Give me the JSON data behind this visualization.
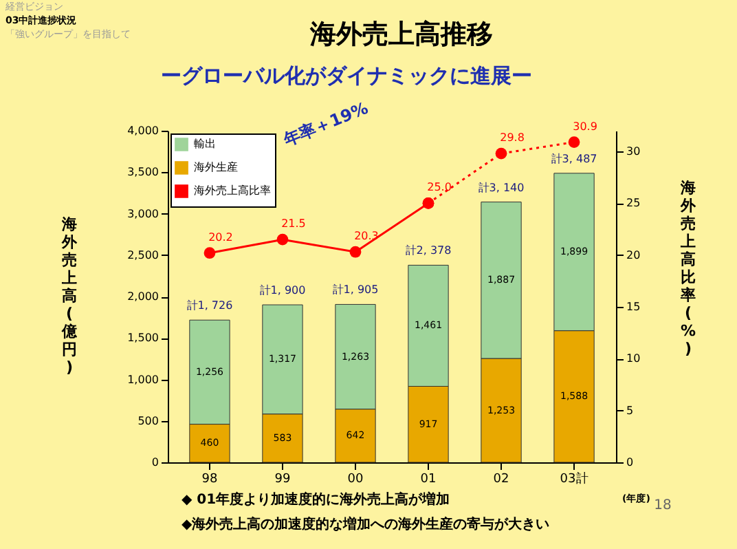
{
  "chart_data": {
    "type": "bar",
    "title": "海外売上高推移",
    "subtitle": "ーグローバル化がダイナミックに進展ー",
    "categories": [
      "98",
      "99",
      "00",
      "01",
      "02",
      "03計"
    ],
    "stacked": true,
    "totals": [
      "計1, 726",
      "計1, 900",
      "計1, 905",
      "計2, 378",
      "計3, 140",
      "計3, 487"
    ],
    "series": [
      {
        "name": "海外生産",
        "color": "#e8a800",
        "values": [
          460,
          583,
          642,
          917,
          1253,
          1588
        ],
        "value_labels": [
          "460",
          "583",
          "642",
          "917",
          "1,253",
          "1,588"
        ]
      },
      {
        "name": "輸出",
        "color": "#9fd49a",
        "values": [
          1256,
          1317,
          1263,
          1461,
          1887,
          1899
        ],
        "value_labels": [
          "1,256",
          "1,317",
          "1,263",
          "1,461",
          "1,887",
          "1,899"
        ]
      },
      {
        "name": "海外売上高比率",
        "type": "line",
        "axis": "y2",
        "color": "#ff0000",
        "line_style": "solid",
        "marker": "circle",
        "values": [
          20.2,
          21.5,
          20.3,
          25.0,
          null,
          null
        ],
        "value_labels": [
          "20.2",
          "21.5",
          "20.3",
          "25.0",
          null,
          null
        ]
      },
      {
        "type": "line",
        "axis": "y2",
        "color": "#ff0000",
        "line_style": "dotted",
        "marker": "circle",
        "values": [
          null,
          null,
          null,
          25.0,
          29.8,
          30.9
        ],
        "value_labels": [
          null,
          null,
          null,
          null,
          "29.8",
          "30.9"
        ]
      }
    ],
    "ylabel": "海外売上高(億円)",
    "y2label": "海外売上高比率(%)",
    "xlabel": "(年度)",
    "ylim": [
      0,
      4000
    ],
    "yticks": [
      0,
      {
        "value": 500,
        "label": "500"
      },
      {
        "value": 1000,
        "label": "1,000"
      },
      {
        "value": 1500,
        "label": "1,500"
      },
      {
        "value": 2000,
        "label": "2,000"
      },
      {
        "value": 2500,
        "label": "2,500"
      },
      {
        "value": 3000,
        "label": "3,000"
      },
      {
        "value": 3500,
        "label": "3,500"
      },
      {
        "value": 4000,
        "label": "4,000"
      }
    ],
    "y2lim": [
      0,
      32
    ],
    "y2ticks": [
      0,
      5,
      10,
      15,
      20,
      25,
      30
    ],
    "grid": false,
    "legend": "top left",
    "annotations": [
      "経営ビジョン",
      "03中計進捗状況",
      "「強いグループ」を目指して",
      "年率＋19%",
      "◆ 01年度より加速度的に海外売上高が増加",
      "◆海外売上高の加速度的な増加への海外生産の寄与が大きい",
      "18"
    ]
  }
}
